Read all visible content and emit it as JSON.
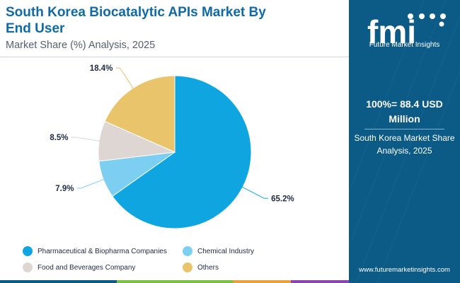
{
  "header": {
    "title": "South Korea Biocatalytic APIs Market By End User",
    "subtitle": "Market Share (%) Analysis, 2025"
  },
  "chart_data": {
    "type": "pie",
    "title": "South Korea Biocatalytic APIs Market By End User",
    "subtitle": "Market Share (%) Analysis, 2025",
    "unit": "%",
    "categories": [
      "Pharmaceutical & Biopharma Companies",
      "Chemical Industry",
      "Food and Beverages Company",
      "Others"
    ],
    "values": [
      65.2,
      7.9,
      8.5,
      18.4
    ],
    "value_labels": [
      "65.2%",
      "7.9%",
      "8.5%",
      "18.4%"
    ],
    "colors": [
      "#0ea5e0",
      "#7dcff1",
      "#ddd6d2",
      "#e9c46a"
    ],
    "start_angle_deg": 0,
    "direction": "clockwise",
    "legend_position": "bottom"
  },
  "side_panel": {
    "logo_text": "fmi",
    "logo_caption": "Future Market Insights",
    "total_value": "100%= 88.4 USD Million",
    "description": "South Korea Market Share Analysis, 2025",
    "website": "www.futuremarketinsights.com"
  },
  "colors": {
    "title": "#0e6aa8",
    "panel_bg": "#0c5a86",
    "bar_colors": [
      "#0c5a86",
      "#7ac143",
      "#e9a23b",
      "#8e44ad"
    ]
  }
}
